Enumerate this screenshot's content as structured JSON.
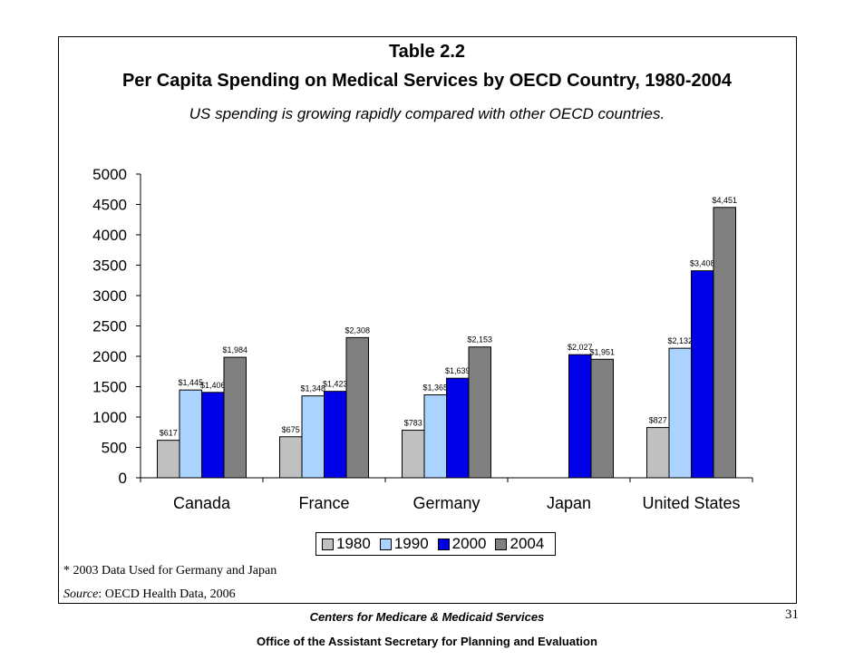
{
  "header": {
    "table_label": "Table  2.2",
    "title": "Per Capita Spending on Medical Services by OECD Country, 1980-2004",
    "subtitle": "US spending is growing rapidly compared with other OECD countries."
  },
  "chart_data": {
    "type": "bar",
    "categories": [
      "Canada",
      "France",
      "Germany",
      "Japan",
      "United States"
    ],
    "series": [
      {
        "name": "1980",
        "color": "#c0c0c0",
        "values": [
          617,
          675,
          783,
          null,
          827
        ],
        "labels": [
          "$617",
          "$675",
          "$783",
          "",
          "$827"
        ]
      },
      {
        "name": "1990",
        "color": "#aad4ff",
        "values": [
          1445,
          1348,
          1365,
          null,
          2132
        ],
        "labels": [
          "$1,445",
          "$1,348",
          "$1,365",
          "",
          "$2,132"
        ]
      },
      {
        "name": "2000",
        "color": "#0000e8",
        "values": [
          1406,
          1423,
          1639,
          2027,
          3408
        ],
        "labels": [
          "$1,406",
          "$1,423",
          "$1,639",
          "$2,027",
          "$3,408"
        ]
      },
      {
        "name": "2004",
        "color": "#808080",
        "values": [
          1984,
          2308,
          2153,
          1951,
          4451
        ],
        "labels": [
          "$1,984",
          "$2,308",
          "$2,153",
          "$1,951",
          "$4,451"
        ]
      }
    ],
    "yticks": [
      0,
      500,
      1000,
      1500,
      2000,
      2500,
      3000,
      3500,
      4000,
      4500,
      5000
    ],
    "ylim": [
      0,
      5000
    ],
    "xlabel": "",
    "ylabel": "",
    "legend_position": "bottom"
  },
  "footnotes": {
    "note": "* 2003 Data Used for Germany and Japan",
    "source_label": "Source",
    "source_text": ": OECD Health Data, 2006"
  },
  "footer": {
    "cms": "Centers for Medicare & Medicaid Services",
    "aspe": "Office of the Assistant Secretary for Planning and Evaluation",
    "page_number": "31"
  }
}
